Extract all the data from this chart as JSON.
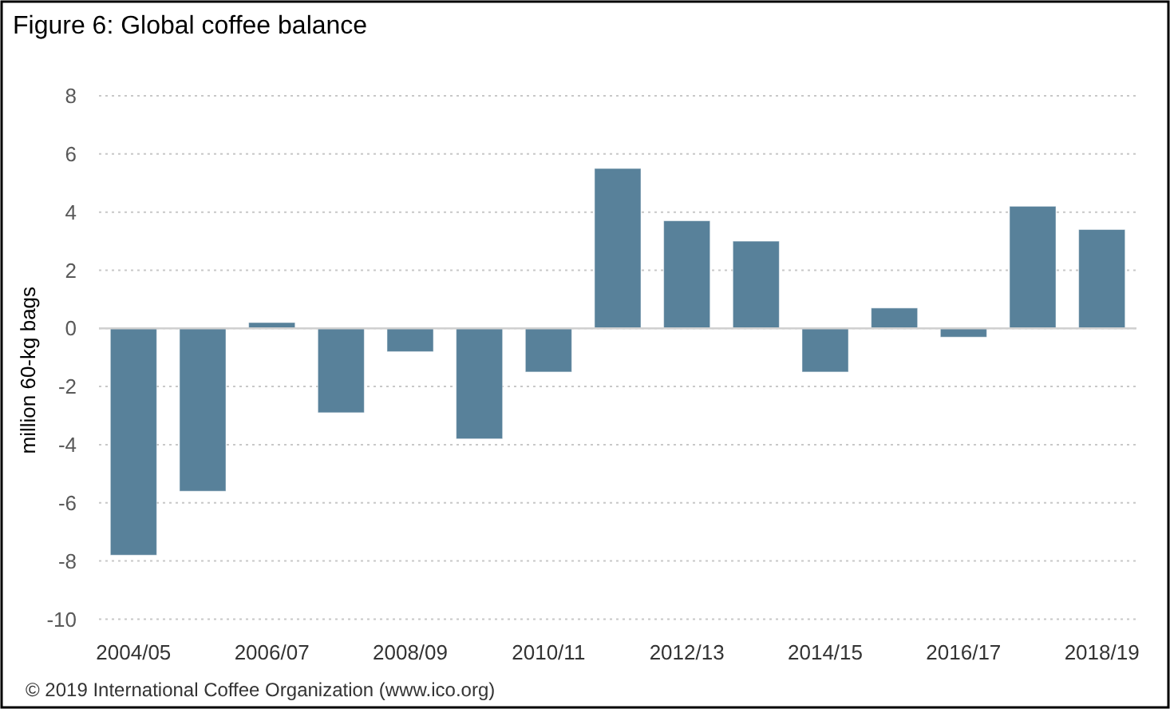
{
  "chart_data": {
    "type": "bar",
    "title": "Figure 6: Global coffee balance",
    "ylabel": "million 60-kg bags",
    "categories": [
      "2004/05",
      null,
      "2006/07",
      null,
      "2008/09",
      null,
      "2010/11",
      null,
      "2012/13",
      null,
      "2014/15",
      null,
      "2016/17",
      null,
      "2018/19"
    ],
    "values": [
      -7.8,
      -5.6,
      0.2,
      -2.9,
      -0.8,
      -3.8,
      -1.5,
      5.5,
      3.7,
      3.0,
      -1.5,
      0.7,
      -0.3,
      4.2,
      3.4
    ],
    "color": "#58819a",
    "ylim": [
      -10,
      8
    ],
    "yticks": [
      -10,
      -8,
      -6,
      -4,
      -2,
      0,
      2,
      4,
      6,
      8
    ],
    "grid": "y",
    "annotations": [
      "© 2019 International Coffee Organization (www.ico.org)"
    ]
  }
}
